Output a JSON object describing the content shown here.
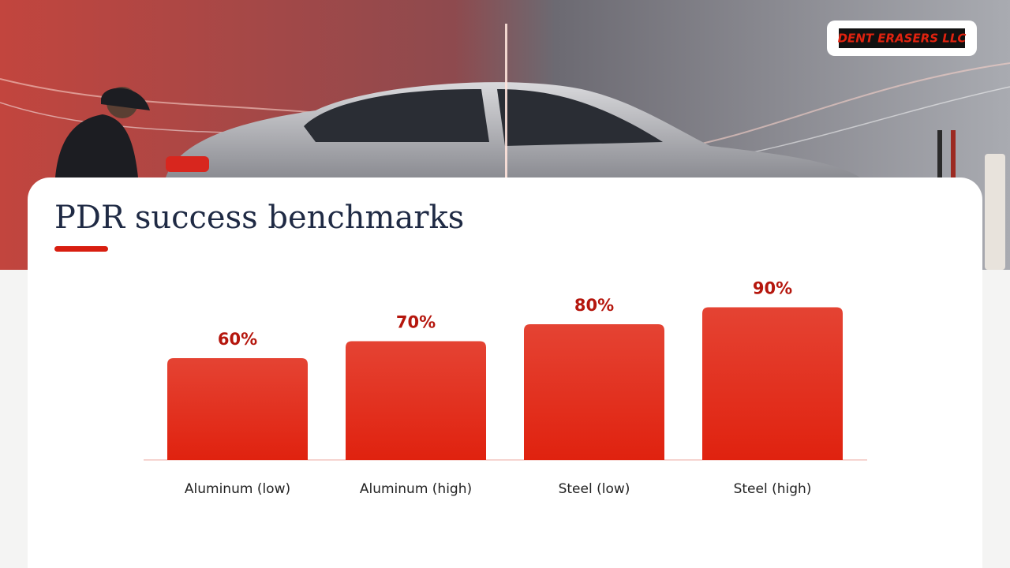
{
  "logo": "DENT ERASERS LLC",
  "chart_data": {
    "type": "bar",
    "title": "PDR success benchmarks",
    "categories": [
      "Aluminum (low)",
      "Aluminum (high)",
      "Steel (low)",
      "Steel (high)"
    ],
    "values": [
      60,
      70,
      80,
      90
    ],
    "value_labels": [
      "60%",
      "70%",
      "80%",
      "90%"
    ],
    "color": "#e0220f"
  }
}
